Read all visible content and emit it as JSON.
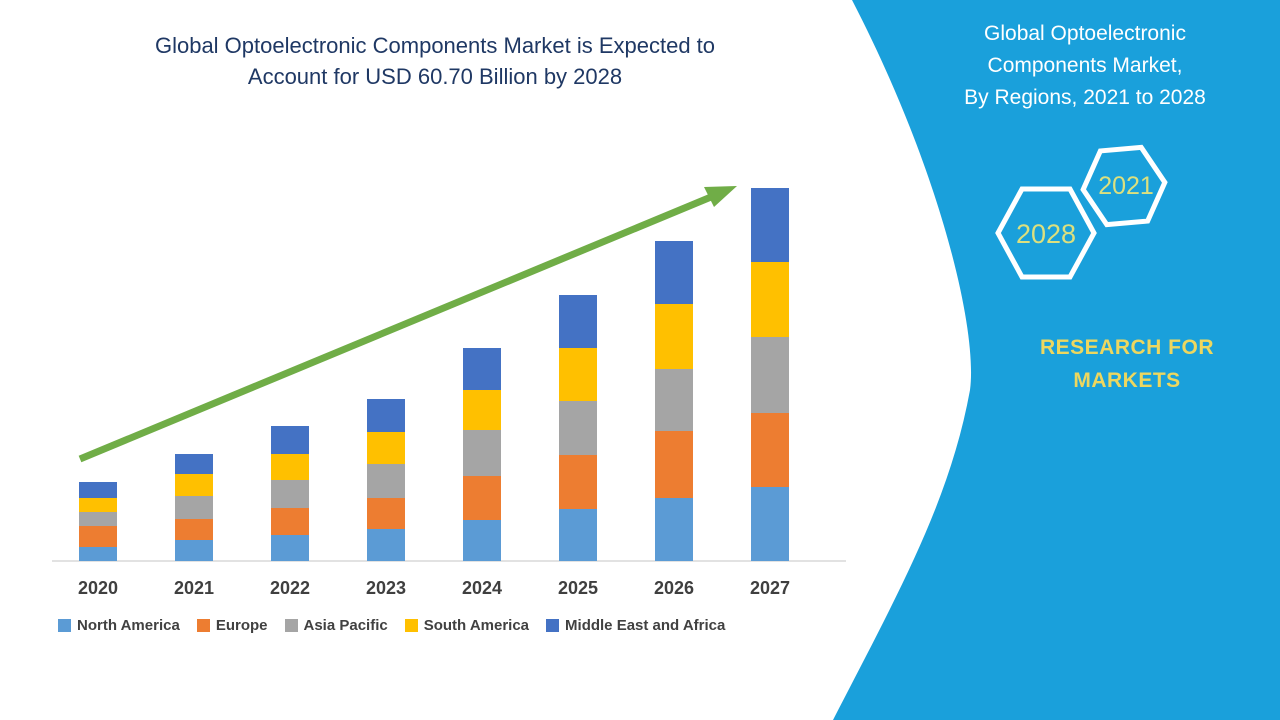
{
  "colors": {
    "panel_teal": "#1AA0DB",
    "title_navy": "#1F3864",
    "arrow_green": "#70AD47",
    "axis_line": "#D9D9D9",
    "tick_text": "#3F3F3F",
    "legend_text": "#414141",
    "hexagon_outline": "#FFFFFF",
    "hexagon_year_text": "#DCE07E",
    "brand_text": "#EDD75F",
    "panel_text": "#FFFFFF",
    "series_north_america": "#5B9BD5",
    "series_europe": "#ED7D31",
    "series_asia_pacific": "#A5A5A5",
    "series_south_america": "#FFC000",
    "series_middle_east_africa": "#4472C4"
  },
  "chart": {
    "title_line1": "Global Optoelectronic Components Market is Expected to",
    "title_line2": "Account for USD 60.70 Billion by 2028"
  },
  "chart_data": {
    "type": "bar",
    "stacked": true,
    "title": "Global Optoelectronic Components Market is Expected to Account for USD 60.70 Billion by 2028",
    "categories": [
      "2020",
      "2021",
      "2022",
      "2023",
      "2024",
      "2025",
      "2026",
      "2027"
    ],
    "series": [
      {
        "name": "North America",
        "color": "#5B9BD5",
        "values": [
          14,
          21,
          26,
          32,
          41,
          52,
          63,
          74
        ]
      },
      {
        "name": "Europe",
        "color": "#ED7D31",
        "values": [
          21,
          21,
          27,
          31,
          44,
          54,
          67,
          74
        ]
      },
      {
        "name": "Asia Pacific",
        "color": "#A5A5A5",
        "values": [
          14,
          23,
          28,
          34,
          46,
          54,
          62,
          76
        ]
      },
      {
        "name": "South America",
        "color": "#FFC000",
        "values": [
          14,
          22,
          26,
          32,
          40,
          53,
          65,
          75
        ]
      },
      {
        "name": "Middle East and Africa",
        "color": "#4472C4",
        "values": [
          16,
          20,
          28,
          33,
          42,
          53,
          63,
          74
        ]
      }
    ],
    "value_units": "relative stacked height (chart shows no value axis; estimated from pixels)",
    "xlabel": "",
    "ylabel": "",
    "grid": false,
    "legend_position": "bottom",
    "annotations": [
      "green upward trend arrow from 2020 toward 2027"
    ]
  },
  "side_panel": {
    "title_line1": "Global Optoelectronic",
    "title_line2": "Components Market,",
    "title_line3": "By Regions, 2021 to 2028",
    "hexagons": [
      {
        "label": "2028"
      },
      {
        "label": "2021"
      }
    ],
    "brand_line1": "RESEARCH FOR",
    "brand_line2": "MARKETS"
  }
}
